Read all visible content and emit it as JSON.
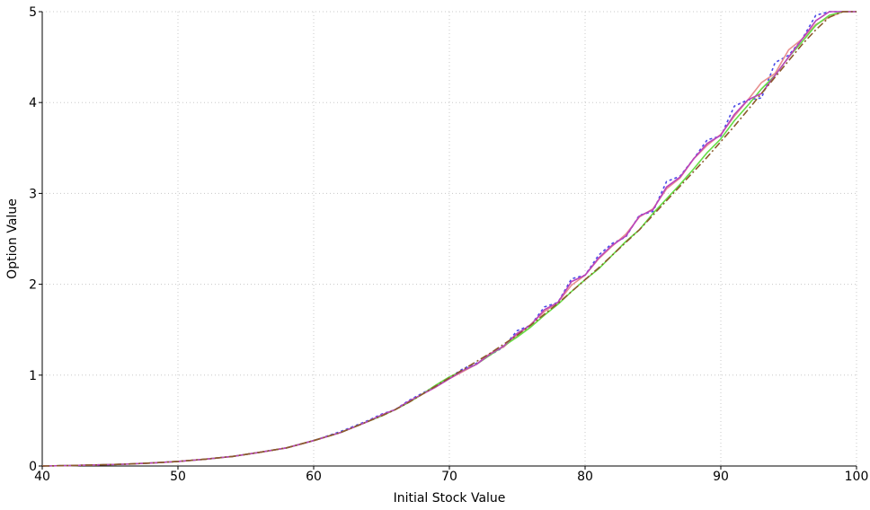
{
  "chart_data": {
    "type": "line",
    "title": "",
    "xlabel": "Initial Stock Value",
    "ylabel": "Option Value",
    "xlim": [
      40,
      100
    ],
    "ylim": [
      0,
      5
    ],
    "xticks": [
      40,
      50,
      60,
      70,
      80,
      90,
      100
    ],
    "yticks": [
      0,
      1,
      2,
      3,
      4,
      5
    ],
    "grid": true,
    "legend": "none",
    "x": [
      40,
      42,
      44,
      46,
      48,
      50,
      52,
      54,
      56,
      58,
      60,
      62,
      63,
      64,
      65,
      66,
      67,
      68,
      69,
      70,
      71,
      72,
      73,
      74,
      75,
      76,
      77,
      78,
      79,
      80,
      81,
      82,
      83,
      84,
      85,
      86,
      87,
      88,
      89,
      90,
      91,
      92,
      93,
      94,
      95,
      96,
      97,
      98,
      99,
      100
    ],
    "series": [
      {
        "color": "#4a4ae8",
        "style": "dotted",
        "values": [
          0.0,
          0.005,
          0.012,
          0.02,
          0.033,
          0.05,
          0.075,
          0.105,
          0.15,
          0.2,
          0.28,
          0.38,
          0.44,
          0.5,
          0.57,
          0.62,
          0.72,
          0.8,
          0.88,
          0.97,
          1.07,
          1.13,
          1.22,
          1.31,
          1.49,
          1.55,
          1.75,
          1.8,
          2.06,
          2.1,
          2.32,
          2.45,
          2.52,
          2.76,
          2.8,
          3.13,
          3.19,
          3.38,
          3.59,
          3.63,
          3.96,
          4.03,
          4.05,
          4.44,
          4.52,
          4.7,
          4.96,
          5.0,
          5.0,
          5.0
        ]
      },
      {
        "color": "#e89090",
        "style": "solid",
        "values": [
          0.0,
          0.005,
          0.012,
          0.02,
          0.033,
          0.05,
          0.075,
          0.105,
          0.15,
          0.2,
          0.28,
          0.37,
          0.43,
          0.49,
          0.56,
          0.62,
          0.7,
          0.79,
          0.87,
          0.96,
          1.04,
          1.12,
          1.24,
          1.31,
          1.44,
          1.56,
          1.7,
          1.8,
          1.99,
          2.1,
          2.28,
          2.42,
          2.55,
          2.74,
          2.83,
          3.05,
          3.17,
          3.38,
          3.53,
          3.65,
          3.85,
          4.03,
          4.22,
          4.32,
          4.58,
          4.7,
          4.86,
          4.94,
          5.0,
          5.0
        ]
      },
      {
        "color": "#66dd44",
        "style": "solid",
        "values": [
          0.0,
          0.005,
          0.012,
          0.02,
          0.033,
          0.05,
          0.075,
          0.105,
          0.15,
          0.2,
          0.28,
          0.37,
          0.43,
          0.49,
          0.55,
          0.62,
          0.7,
          0.79,
          0.89,
          0.98,
          1.05,
          1.12,
          1.22,
          1.32,
          1.42,
          1.53,
          1.66,
          1.78,
          1.92,
          2.05,
          2.17,
          2.32,
          2.47,
          2.6,
          2.78,
          2.94,
          3.1,
          3.27,
          3.45,
          3.6,
          3.8,
          3.97,
          4.15,
          4.3,
          4.5,
          4.67,
          4.85,
          4.96,
          5.0,
          5.0
        ]
      },
      {
        "color": "#bb44bb",
        "style": "solid",
        "values": [
          0.0,
          0.005,
          0.012,
          0.02,
          0.033,
          0.05,
          0.075,
          0.105,
          0.15,
          0.2,
          0.28,
          0.37,
          0.43,
          0.49,
          0.56,
          0.62,
          0.71,
          0.79,
          0.87,
          0.96,
          1.05,
          1.12,
          1.23,
          1.32,
          1.46,
          1.55,
          1.72,
          1.8,
          2.03,
          2.1,
          2.29,
          2.43,
          2.53,
          2.75,
          2.82,
          3.07,
          3.18,
          3.38,
          3.55,
          3.64,
          3.87,
          4.03,
          4.1,
          4.3,
          4.5,
          4.7,
          4.9,
          5.0,
          5.0,
          5.0
        ]
      },
      {
        "color": "#8b5a2b",
        "style": "dashdot",
        "values": [
          0.0,
          0.005,
          0.012,
          0.02,
          0.033,
          0.05,
          0.075,
          0.105,
          0.15,
          0.2,
          0.28,
          0.37,
          0.43,
          0.49,
          0.55,
          0.62,
          0.7,
          0.79,
          0.88,
          0.97,
          1.06,
          1.15,
          1.24,
          1.34,
          1.44,
          1.55,
          1.67,
          1.79,
          1.92,
          2.05,
          2.18,
          2.32,
          2.46,
          2.6,
          2.76,
          2.92,
          3.08,
          3.24,
          3.4,
          3.57,
          3.74,
          3.92,
          4.1,
          4.28,
          4.46,
          4.64,
          4.8,
          4.94,
          5.0,
          5.0
        ]
      }
    ]
  }
}
